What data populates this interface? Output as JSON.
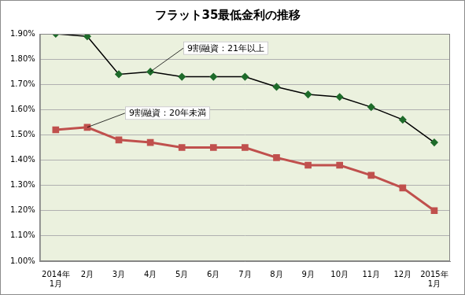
{
  "chart_data": {
    "type": "line",
    "title": "フラット35最低金利の推移",
    "categories": [
      [
        "2014年",
        "1月"
      ],
      "2月",
      "3月",
      "4月",
      "5月",
      "6月",
      "7月",
      "8月",
      "9月",
      "10月",
      "11月",
      "12月",
      [
        "2015年",
        "1月"
      ]
    ],
    "series": [
      {
        "name": "9割融資：21年以上",
        "color": "#000000",
        "marker": "diamond",
        "values": [
          1.9,
          1.89,
          1.74,
          1.75,
          1.73,
          1.73,
          1.73,
          1.69,
          1.66,
          1.65,
          1.61,
          1.56,
          1.47
        ]
      },
      {
        "name": "9割融資：20年未満",
        "color": "#c0504d",
        "marker": "square",
        "values": [
          1.52,
          1.53,
          1.48,
          1.47,
          1.45,
          1.45,
          1.45,
          1.41,
          1.38,
          1.38,
          1.34,
          1.29,
          1.2
        ]
      }
    ],
    "ylim": [
      1.0,
      1.9
    ],
    "yticks": [
      {
        "value": 1.0,
        "label": "1.00%"
      },
      {
        "value": 1.1,
        "label": "1.10%"
      },
      {
        "value": 1.2,
        "label": "1.20%"
      },
      {
        "value": 1.3,
        "label": "1.30%"
      },
      {
        "value": 1.4,
        "label": "1.40%"
      },
      {
        "value": 1.5,
        "label": "1.50%"
      },
      {
        "value": 1.6,
        "label": "1.60%"
      },
      {
        "value": 1.7,
        "label": "1.70%"
      },
      {
        "value": 1.8,
        "label": "1.80%"
      },
      {
        "value": 1.9,
        "label": "1.90%"
      }
    ],
    "grid": true
  }
}
